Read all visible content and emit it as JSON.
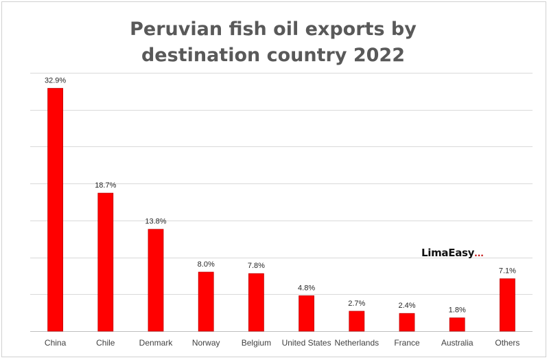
{
  "chart_data": {
    "type": "bar",
    "title_lines": [
      "Peruvian fish oil exports by",
      "destination country 2022"
    ],
    "categories": [
      "China",
      "Chile",
      "Denmark",
      "Norway",
      "Belgium",
      "United States",
      "Netherlands",
      "France",
      "Australia",
      "Others"
    ],
    "values": [
      32.9,
      18.7,
      13.8,
      8.0,
      7.8,
      4.8,
      2.7,
      2.4,
      1.8,
      7.1
    ],
    "data_labels": [
      "32.9%",
      "18.7%",
      "13.8%",
      "8.0%",
      "7.8%",
      "4.8%",
      "2.7%",
      "2.4%",
      "1.8%",
      "7.1%"
    ],
    "xlabel": "",
    "ylabel": "",
    "ylim": [
      0,
      35
    ],
    "y_gridlines": [
      0,
      5,
      10,
      15,
      20,
      25,
      30,
      35
    ],
    "y_tick_labels_visible": false,
    "grid": true,
    "legend": "none",
    "bar_color": "#ff0000",
    "bar_edge_color": "#c00000"
  },
  "watermark": {
    "text": "LimaEasy",
    "dots": "..."
  }
}
